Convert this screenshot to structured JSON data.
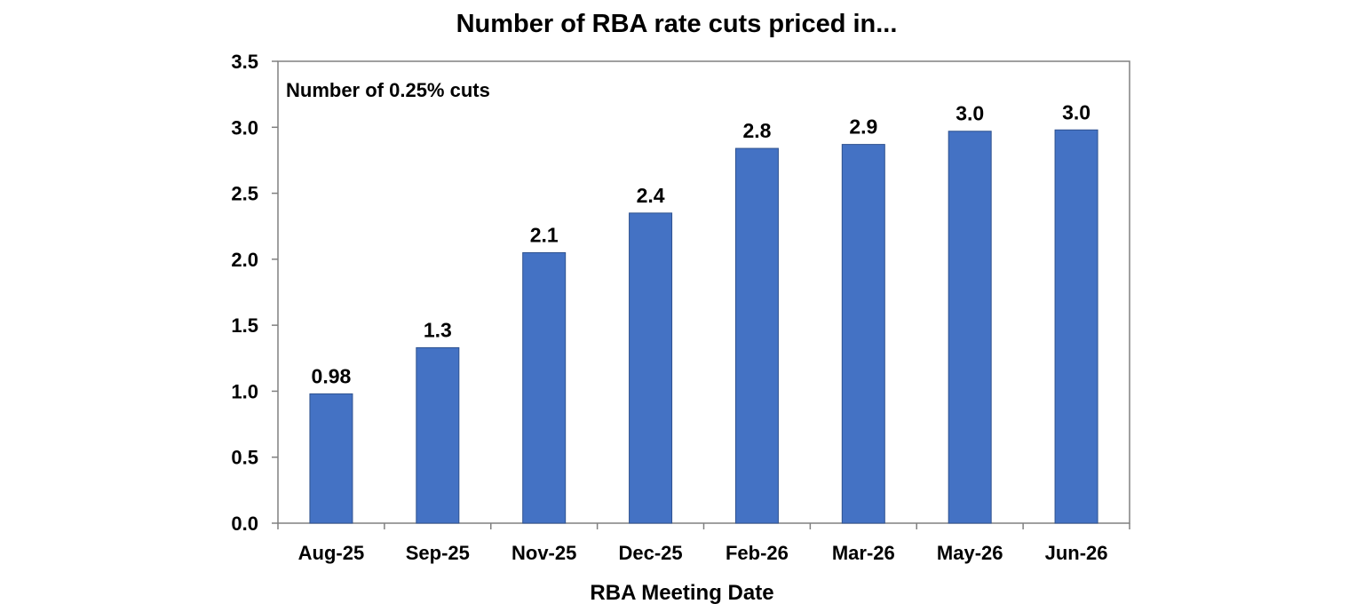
{
  "chart_data": {
    "type": "bar",
    "title": "Number of RBA rate cuts priced in...",
    "annotation": "Number of 0.25% cuts",
    "xlabel": "RBA Meeting Date",
    "ylabel": "",
    "categories": [
      "Aug-25",
      "Sep-25",
      "Nov-25",
      "Dec-25",
      "Feb-26",
      "Mar-26",
      "May-26",
      "Jun-26"
    ],
    "values": [
      0.98,
      1.33,
      2.05,
      2.35,
      2.84,
      2.87,
      2.97,
      2.98
    ],
    "data_labels": [
      "0.98",
      "1.3",
      "2.1",
      "2.4",
      "2.8",
      "2.9",
      "3.0",
      "3.0"
    ],
    "ylim": [
      0,
      3.5
    ],
    "yticks": [
      "0.0",
      "0.5",
      "1.0",
      "1.5",
      "2.0",
      "2.5",
      "3.0",
      "3.5"
    ],
    "grid": false,
    "legend": "none",
    "colors": {
      "bar": "#4472C4",
      "bar_outline": "#2F528F",
      "axis": "#808080"
    }
  }
}
